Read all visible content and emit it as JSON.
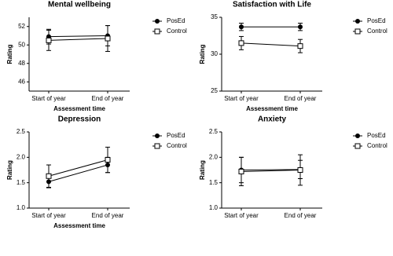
{
  "chart_data": [
    {
      "type": "line",
      "title": "Mental wellbeing",
      "y_label": "Rating",
      "x_label": "Assessment time",
      "categories": [
        "Start of year",
        "End of year"
      ],
      "ylim": [
        45,
        53
      ],
      "yticks": [
        46,
        48,
        50,
        52
      ],
      "series": [
        {
          "name": "PosEd",
          "color": "#000000",
          "marker": "circle",
          "values": [
            50.9,
            51.0
          ],
          "errors": [
            0.8,
            1.1
          ]
        },
        {
          "name": "Control",
          "color": "#000000",
          "marker": "square",
          "values": [
            50.5,
            50.7
          ],
          "errors": [
            1.1,
            1.4
          ]
        }
      ]
    },
    {
      "type": "line",
      "title": "Satisfaction with Life",
      "y_label": "Rating",
      "x_label": "Assessment time",
      "categories": [
        "Start of year",
        "End of year"
      ],
      "ylim": [
        25,
        35
      ],
      "yticks": [
        25,
        30,
        35
      ],
      "series": [
        {
          "name": "PosEd",
          "color": "#000000",
          "marker": "circle",
          "values": [
            33.7,
            33.7
          ],
          "errors": [
            0.5,
            0.5
          ]
        },
        {
          "name": "Control",
          "color": "#000000",
          "marker": "square",
          "values": [
            31.5,
            31.1
          ],
          "errors": [
            0.9,
            0.9
          ]
        }
      ]
    },
    {
      "type": "line",
      "title": "Depression",
      "y_label": "Rating",
      "x_label": "Assessment time",
      "categories": [
        "Start of year",
        "End of year"
      ],
      "ylim": [
        1.0,
        2.5
      ],
      "yticks": [
        {
          "value": 1.0,
          "label": "1.0"
        },
        1.5,
        {
          "value": 2.0,
          "label": "2.0"
        },
        2.5
      ],
      "series": [
        {
          "name": "PosEd",
          "color": "#000000",
          "marker": "circle",
          "values": [
            1.52,
            1.85
          ],
          "errors": [
            0.12,
            0.15
          ]
        },
        {
          "name": "Control",
          "color": "#000000",
          "marker": "square",
          "values": [
            1.63,
            1.95
          ],
          "errors": [
            0.22,
            0.25
          ]
        }
      ]
    },
    {
      "type": "line",
      "title": "Anxiety",
      "y_label": "Rating",
      "categories": [
        "Start of year",
        "End of year"
      ],
      "ylim": [
        1.0,
        2.5
      ],
      "yticks": [
        {
          "value": 1.0,
          "label": "1.0"
        },
        1.5,
        {
          "value": 2.0,
          "label": "2.0"
        },
        2.5
      ],
      "series": [
        {
          "name": "PosEd",
          "color": "#000000",
          "marker": "circle",
          "values": [
            1.75,
            1.76
          ],
          "errors": [
            0.25,
            0.18
          ]
        },
        {
          "name": "Control",
          "color": "#000000",
          "marker": "square",
          "values": [
            1.72,
            1.75
          ],
          "errors": [
            0.28,
            0.3
          ]
        }
      ]
    }
  ]
}
